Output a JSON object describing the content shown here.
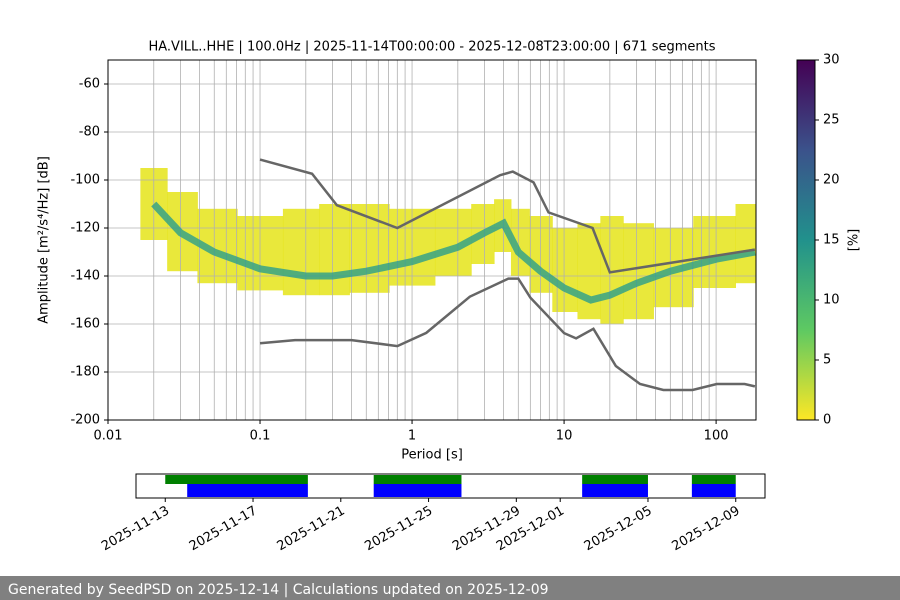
{
  "chart_data": {
    "type": "ppsd",
    "title": "HA.VILL..HHE | 100.0Hz | 2025-11-14T00:00:00 - 2025-12-08T23:00:00 | 671 segments",
    "xlabel": "Period [s]",
    "ylabel": "Amplitude [m²/s⁴/Hz] [dB]",
    "xscale": "log",
    "xlim": [
      0.01,
      183
    ],
    "ylim": [
      -200,
      -50
    ],
    "xticks": [
      0.01,
      0.1,
      1,
      10,
      100
    ],
    "xminorticks": [
      0.02,
      0.03,
      0.04,
      0.05,
      0.06,
      0.07,
      0.08,
      0.09,
      0.2,
      0.3,
      0.4,
      0.5,
      0.6,
      0.7,
      0.8,
      0.9,
      2,
      3,
      4,
      5,
      6,
      7,
      8,
      9,
      20,
      30,
      40,
      50,
      60,
      70,
      80,
      90
    ],
    "yticks": [
      -200,
      -180,
      -160,
      -140,
      -120,
      -100,
      -80,
      -60
    ],
    "grid": true,
    "density": {
      "x": [
        0.02,
        0.03,
        0.05,
        0.1,
        0.2,
        0.3,
        0.5,
        1,
        2,
        3,
        4,
        5,
        7,
        10,
        15,
        20,
        30,
        50,
        100,
        180
      ],
      "envelope_low": [
        -125,
        -138,
        -143,
        -146,
        -148,
        -148,
        -147,
        -144,
        -140,
        -135,
        -130,
        -140,
        -147,
        -155,
        -158,
        -160,
        -158,
        -153,
        -145,
        -143
      ],
      "envelope_high": [
        -95,
        -105,
        -112,
        -115,
        -112,
        -110,
        -110,
        -112,
        -112,
        -110,
        -108,
        -112,
        -115,
        -120,
        -118,
        -115,
        -118,
        -120,
        -115,
        -110
      ],
      "mode": [
        -110,
        -122,
        -130,
        -137,
        -140,
        -140,
        -138,
        -134,
        -128,
        -122,
        -118,
        -130,
        -138,
        -145,
        -150,
        -148,
        -143,
        -138,
        -133,
        -130
      ],
      "envelope_color": "#e5e419",
      "mode_color": "#2a9d8c"
    },
    "noise_models": [
      {
        "x": [
          0.1,
          0.22,
          0.32,
          0.8,
          3.8,
          4.6,
          6.3,
          7.9,
          15.4,
          20,
          180
        ],
        "values": [
          -91.5,
          -97.4,
          -110.5,
          -120,
          -98,
          -96.5,
          -101,
          -113.5,
          -120,
          -138.5,
          -129
        ]
      },
      {
        "x": [
          0.1,
          0.17,
          0.4,
          0.8,
          1.24,
          2.4,
          4.3,
          5,
          6,
          10,
          12,
          15.6,
          21.9,
          31.6,
          45,
          70,
          101,
          154,
          180
        ],
        "values": [
          -168,
          -166.7,
          -166.7,
          -169.2,
          -163.7,
          -148.6,
          -141.1,
          -141.1,
          -149,
          -163.8,
          -166,
          -162,
          -177.5,
          -185,
          -187.5,
          -187.5,
          -185,
          -185,
          -186
        ]
      }
    ],
    "noise_model_color": "#666666",
    "colorbar": {
      "label": "[%]",
      "lim": [
        0,
        30
      ],
      "ticks": [
        0,
        5,
        10,
        15,
        20,
        25,
        30
      ]
    },
    "timeline": {
      "xlim": [
        "2025-11-11T16:00:00",
        "2025-12-10T08:00:00"
      ],
      "xticks": [
        "2025-11-13",
        "2025-11-17",
        "2025-11-21",
        "2025-11-25",
        "2025-11-29",
        "2025-12-01",
        "2025-12-05",
        "2025-12-09"
      ],
      "available": [
        {
          "start": "2025-11-13T00:00:00",
          "end": "2025-11-19T12:00:00"
        },
        {
          "start": "2025-11-22T12:00:00",
          "end": "2025-11-26T12:00:00"
        },
        {
          "start": "2025-12-02T00:00:00",
          "end": "2025-12-05T00:00:00"
        },
        {
          "start": "2025-12-07T00:00:00",
          "end": "2025-12-09T00:00:00"
        }
      ],
      "used": [
        {
          "start": "2025-11-14T00:00:00",
          "end": "2025-11-19T12:00:00"
        },
        {
          "start": "2025-11-22T12:00:00",
          "end": "2025-11-26T12:00:00"
        },
        {
          "start": "2025-12-02T00:00:00",
          "end": "2025-12-05T00:00:00"
        },
        {
          "start": "2025-12-07T00:00:00",
          "end": "2025-12-09T00:00:00"
        }
      ],
      "available_color": "#008000",
      "used_color": "#0000ff"
    },
    "footer": "Generated by SeedPSD on 2025-12-14 | Calculations updated on 2025-12-09"
  }
}
